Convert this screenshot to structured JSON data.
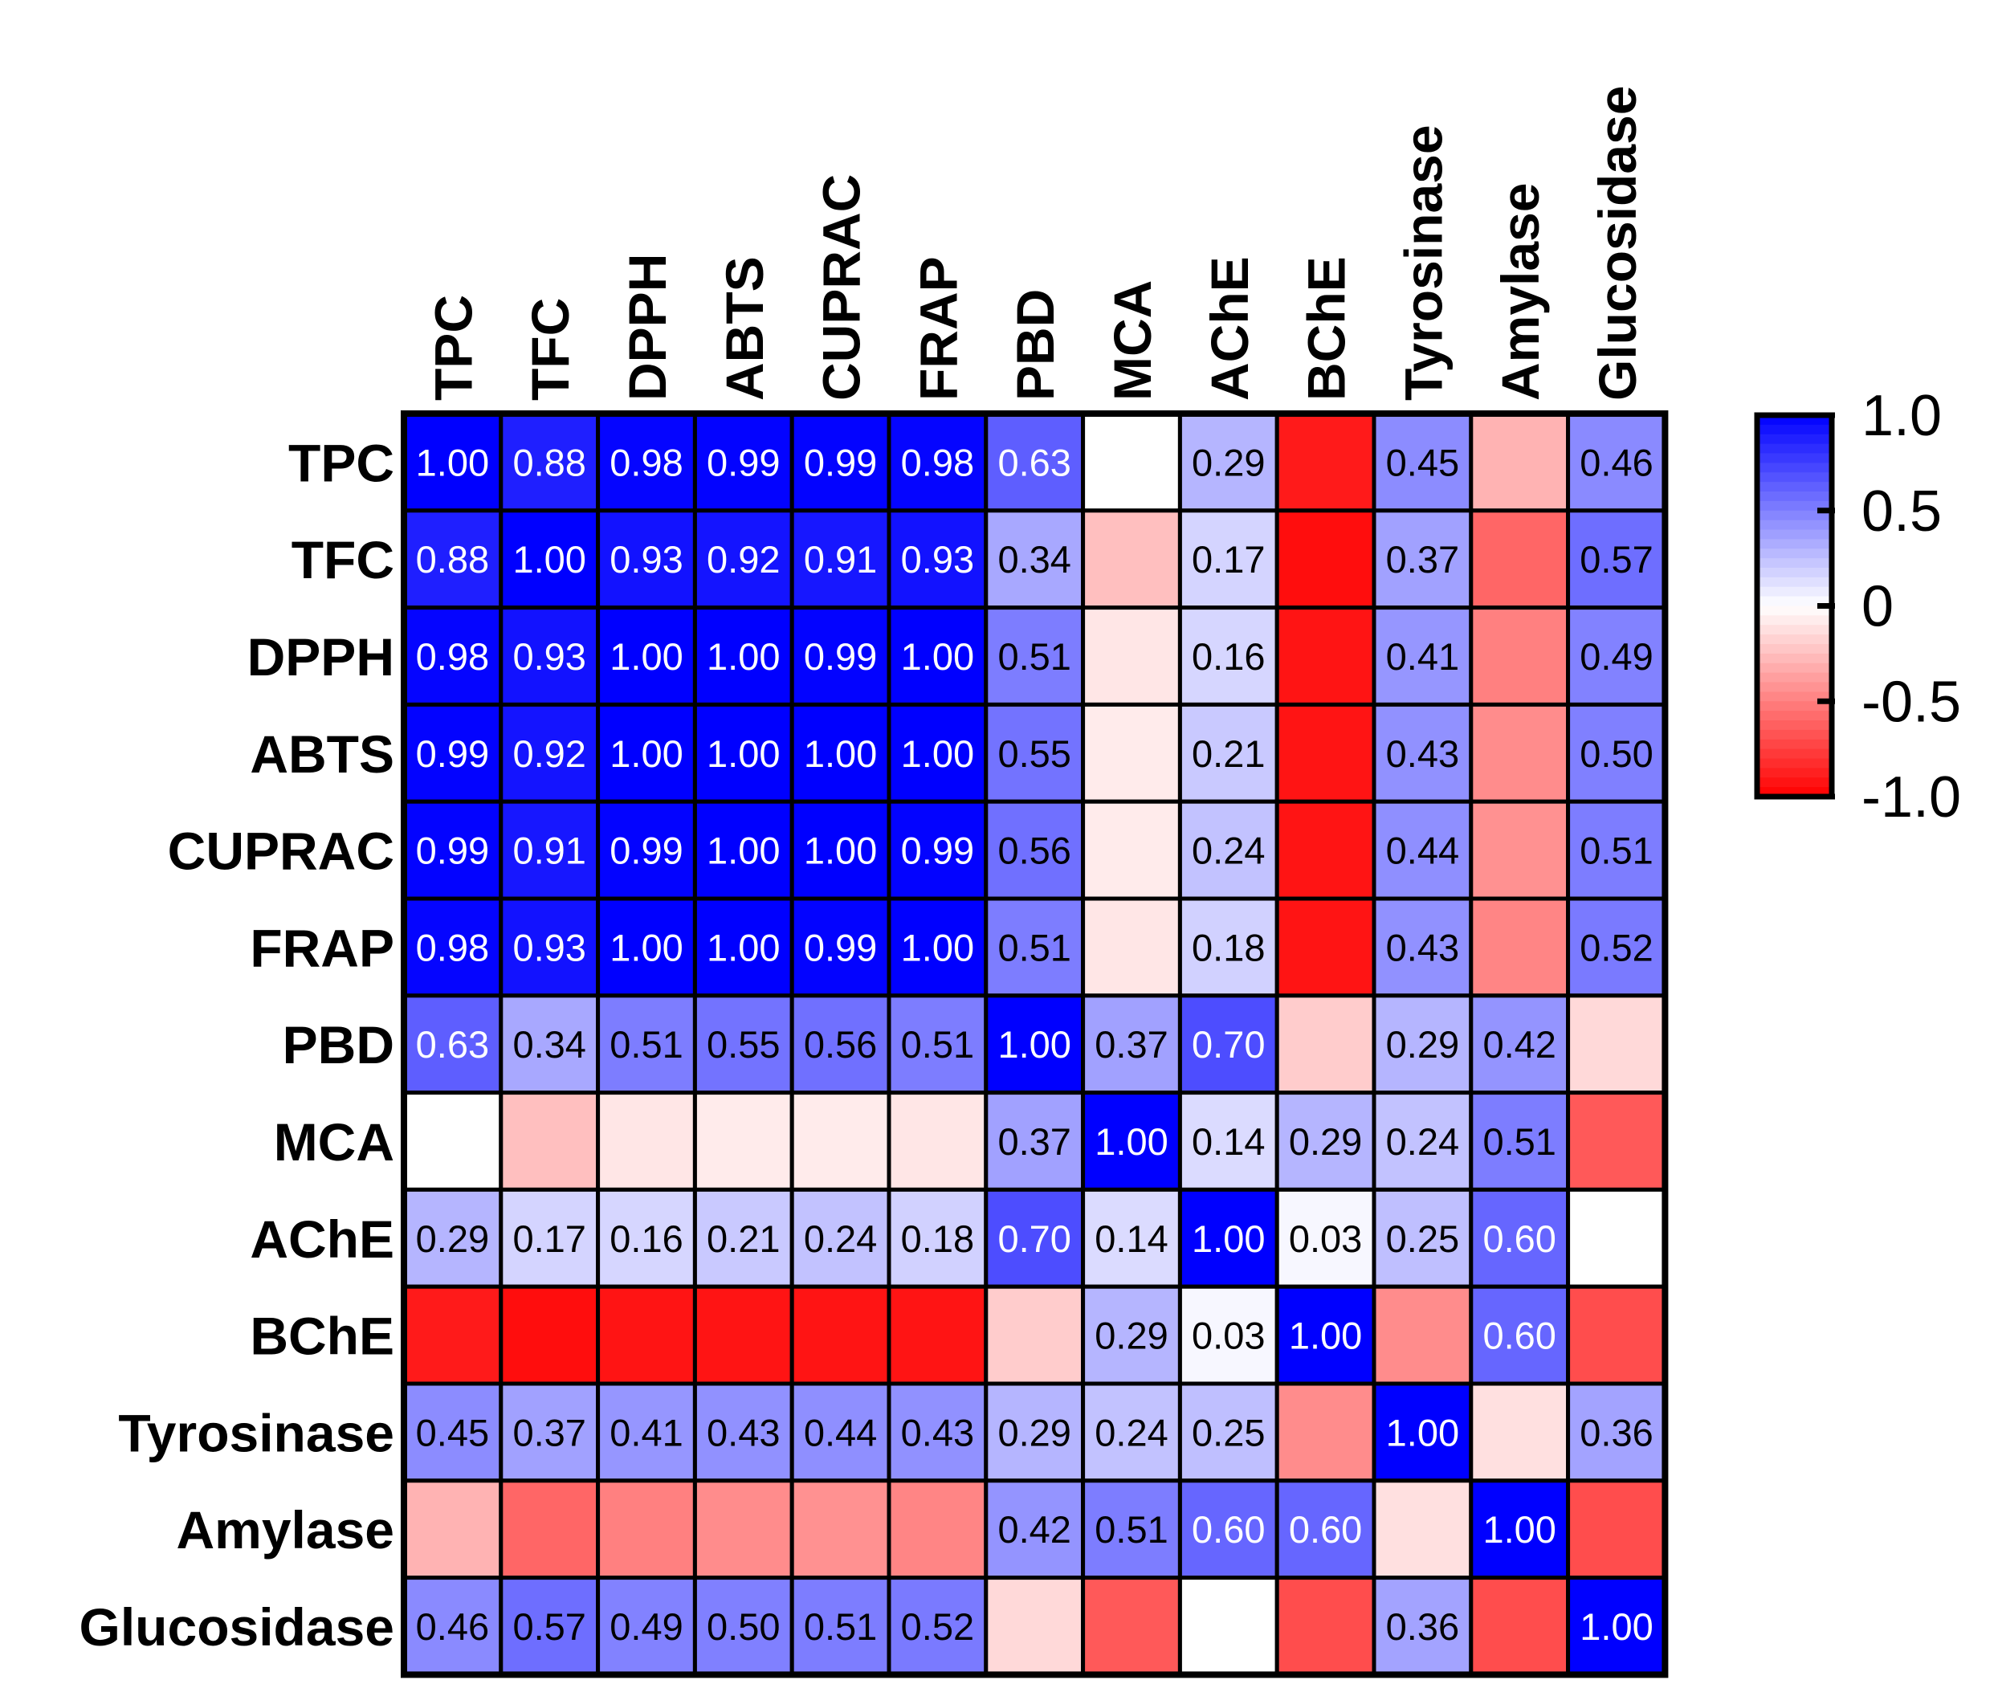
{
  "chart_data": {
    "type": "heatmap",
    "title": "",
    "variables": [
      "TPC",
      "TFC",
      "DPPH",
      "ABTS",
      "CUPRAC",
      "FRAP",
      "PBD",
      "MCA",
      "AChE",
      "BChE",
      "Tyrosinase",
      "Amylase",
      "Glucosidase"
    ],
    "values": [
      [
        1.0,
        0.88,
        0.98,
        0.99,
        0.99,
        0.98,
        0.63,
        0.0,
        0.29,
        -0.9,
        0.45,
        -0.3,
        0.46
      ],
      [
        0.88,
        1.0,
        0.93,
        0.92,
        0.91,
        0.93,
        0.34,
        -0.25,
        0.17,
        -0.95,
        0.37,
        -0.6,
        0.57
      ],
      [
        0.98,
        0.93,
        1.0,
        1.0,
        0.99,
        1.0,
        0.51,
        -0.1,
        0.16,
        -0.92,
        0.41,
        -0.5,
        0.49
      ],
      [
        0.99,
        0.92,
        1.0,
        1.0,
        1.0,
        1.0,
        0.55,
        -0.08,
        0.21,
        -0.92,
        0.43,
        -0.45,
        0.5
      ],
      [
        0.99,
        0.91,
        0.99,
        1.0,
        1.0,
        0.99,
        0.56,
        -0.08,
        0.24,
        -0.92,
        0.44,
        -0.43,
        0.51
      ],
      [
        0.98,
        0.93,
        1.0,
        1.0,
        0.99,
        1.0,
        0.51,
        -0.1,
        0.18,
        -0.92,
        0.43,
        -0.48,
        0.52
      ],
      [
        0.63,
        0.34,
        0.51,
        0.55,
        0.56,
        0.51,
        1.0,
        0.37,
        0.7,
        -0.2,
        0.29,
        0.42,
        -0.15
      ],
      [
        0.0,
        -0.25,
        -0.1,
        -0.08,
        -0.08,
        -0.1,
        0.37,
        1.0,
        0.14,
        0.29,
        0.24,
        0.51,
        -0.65
      ],
      [
        0.29,
        0.17,
        0.16,
        0.21,
        0.24,
        0.18,
        0.7,
        0.14,
        1.0,
        0.03,
        0.25,
        0.6,
        0.0
      ],
      [
        -0.9,
        -0.95,
        -0.92,
        -0.92,
        -0.92,
        -0.92,
        -0.2,
        0.29,
        0.03,
        1.0,
        -0.45,
        0.6,
        -0.7
      ],
      [
        0.45,
        0.37,
        0.41,
        0.43,
        0.44,
        0.43,
        0.29,
        0.24,
        0.25,
        -0.45,
        1.0,
        -0.12,
        0.36
      ],
      [
        -0.3,
        -0.6,
        -0.5,
        -0.45,
        -0.43,
        -0.48,
        0.42,
        0.51,
        0.6,
        0.6,
        -0.12,
        1.0,
        -0.7
      ],
      [
        0.46,
        0.57,
        0.49,
        0.5,
        0.51,
        0.52,
        -0.15,
        -0.65,
        0.0,
        -0.7,
        0.36,
        -0.7,
        1.0
      ]
    ],
    "cell_labels": [
      [
        "1.00",
        "0.88",
        "0.98",
        "0.99",
        "0.99",
        "0.98",
        "0.63",
        "",
        "0.29",
        "",
        "0.45",
        "",
        "0.46"
      ],
      [
        "0.88",
        "1.00",
        "0.93",
        "0.92",
        "0.91",
        "0.93",
        "0.34",
        "",
        "0.17",
        "",
        "0.37",
        "",
        "0.57"
      ],
      [
        "0.98",
        "0.93",
        "1.00",
        "1.00",
        "0.99",
        "1.00",
        "0.51",
        "",
        "0.16",
        "",
        "0.41",
        "",
        "0.49"
      ],
      [
        "0.99",
        "0.92",
        "1.00",
        "1.00",
        "1.00",
        "1.00",
        "0.55",
        "",
        "0.21",
        "",
        "0.43",
        "",
        "0.50"
      ],
      [
        "0.99",
        "0.91",
        "0.99",
        "1.00",
        "1.00",
        "0.99",
        "0.56",
        "",
        "0.24",
        "",
        "0.44",
        "",
        "0.51"
      ],
      [
        "0.98",
        "0.93",
        "1.00",
        "1.00",
        "0.99",
        "1.00",
        "0.51",
        "",
        "0.18",
        "",
        "0.43",
        "",
        "0.52"
      ],
      [
        "0.63",
        "0.34",
        "0.51",
        "0.55",
        "0.56",
        "0.51",
        "1.00",
        "0.37",
        "0.70",
        "",
        "0.29",
        "0.42",
        ""
      ],
      [
        "",
        "",
        "",
        "",
        "",
        "",
        "0.37",
        "1.00",
        "0.14",
        "0.29",
        "0.24",
        "0.51",
        ""
      ],
      [
        "0.29",
        "0.17",
        "0.16",
        "0.21",
        "0.24",
        "0.18",
        "0.70",
        "0.14",
        "1.00",
        "0.03",
        "0.25",
        "0.60",
        ""
      ],
      [
        "",
        "",
        "",
        "",
        "",
        "",
        "",
        "0.29",
        "0.03",
        "1.00",
        "",
        "0.60",
        ""
      ],
      [
        "0.45",
        "0.37",
        "0.41",
        "0.43",
        "0.44",
        "0.43",
        "0.29",
        "0.24",
        "0.25",
        "",
        "1.00",
        "",
        "0.36"
      ],
      [
        "",
        "",
        "",
        "",
        "",
        "",
        "0.42",
        "0.51",
        "0.60",
        "0.60",
        "",
        "1.00",
        ""
      ],
      [
        "0.46",
        "0.57",
        "0.49",
        "0.50",
        "0.51",
        "0.52",
        "",
        "",
        "",
        "",
        "0.36",
        "",
        "1.00"
      ]
    ],
    "color_scale": {
      "min": -1.0,
      "max": 1.0,
      "low_color": "#ff0000",
      "mid_color": "#ffffff",
      "high_color": "#0000ff",
      "ticks": [
        1.0,
        0.5,
        0,
        -0.5,
        -1.0
      ],
      "tick_labels": [
        "1.0",
        "0.5",
        "0",
        "-0.5",
        "-1.0"
      ]
    },
    "legend_position": "right"
  }
}
